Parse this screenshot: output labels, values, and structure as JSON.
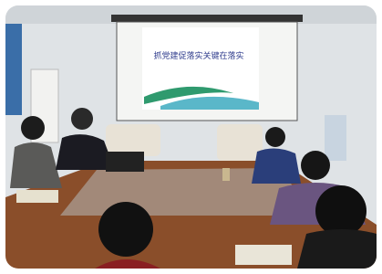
{
  "slide": {
    "title": "抓党建促落实关键在落实"
  }
}
